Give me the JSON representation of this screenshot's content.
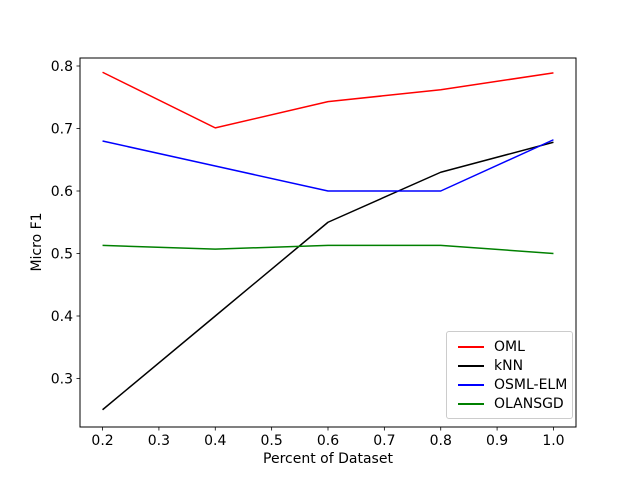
{
  "figure": {
    "background": "#ffffff",
    "frame_color": "#000000"
  },
  "chart_data": {
    "type": "line",
    "title": "",
    "xlabel": "Percent of Dataset",
    "ylabel": "Micro F1",
    "x": [
      0.2,
      0.4,
      0.6,
      0.8,
      1.0
    ],
    "series": [
      {
        "name": "OML",
        "color": "#ff0000",
        "values": [
          0.79,
          0.701,
          0.743,
          0.762,
          0.789
        ]
      },
      {
        "name": "kNN",
        "color": "#000000",
        "values": [
          0.25,
          0.4,
          0.55,
          0.63,
          0.678
        ]
      },
      {
        "name": "OSML-ELM",
        "color": "#0000ff",
        "values": [
          0.68,
          0.64,
          0.6,
          0.6,
          0.682
        ]
      },
      {
        "name": "OLANSGD",
        "color": "#008000",
        "values": [
          0.513,
          0.507,
          0.513,
          0.513,
          0.5
        ]
      }
    ],
    "xticks": [
      0.2,
      0.3,
      0.4,
      0.5,
      0.6,
      0.7,
      0.8,
      0.9,
      1.0
    ],
    "yticks": [
      0.3,
      0.4,
      0.5,
      0.6,
      0.7,
      0.8
    ],
    "xlim": [
      0.16,
      1.04
    ],
    "ylim": [
      0.2224,
      0.8128
    ],
    "grid": false,
    "legend": {
      "position": "lower right",
      "entries": [
        "OML",
        "kNN",
        "OSML-ELM",
        "OLANSGD"
      ]
    }
  }
}
